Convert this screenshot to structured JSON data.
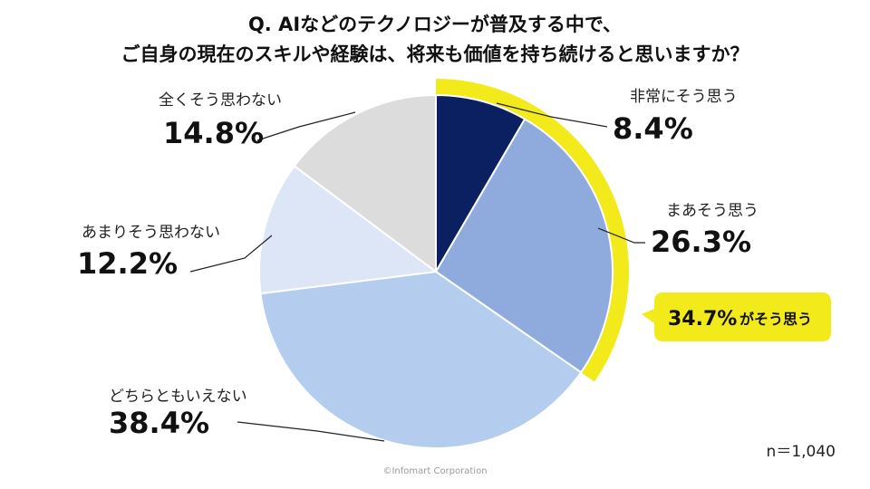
{
  "title": {
    "line1": "Q. AIなどのテクノロジーが普及する中で、",
    "line2": "ご自身の現在のスキルや経験は、将来も価値を持ち続けると思いますか？"
  },
  "callout": {
    "value": "34.7%",
    "text": "がそう思う",
    "color": "#f2ea1b"
  },
  "sample_note": "n＝1,040",
  "copyright": "©Infomart Corporation",
  "chart_data": {
    "type": "pie",
    "start": "12 o'clock, clockwise",
    "categories": [
      "非常にそう思う",
      "まあそう思う",
      "どちらともいえない",
      "あまりそう思わない",
      "全くそう思わない"
    ],
    "values": [
      8.4,
      26.3,
      38.4,
      12.2,
      14.8
    ],
    "labels": [
      "8.4%",
      "26.3%",
      "38.4%",
      "12.2%",
      "14.8%"
    ],
    "colors": [
      "#0b2060",
      "#8faadc",
      "#b4cdee",
      "#dde6f7",
      "#dcdcdc"
    ],
    "highlight_categories": [
      "非常にそう思う",
      "まあそう思う"
    ],
    "legend": "none"
  }
}
